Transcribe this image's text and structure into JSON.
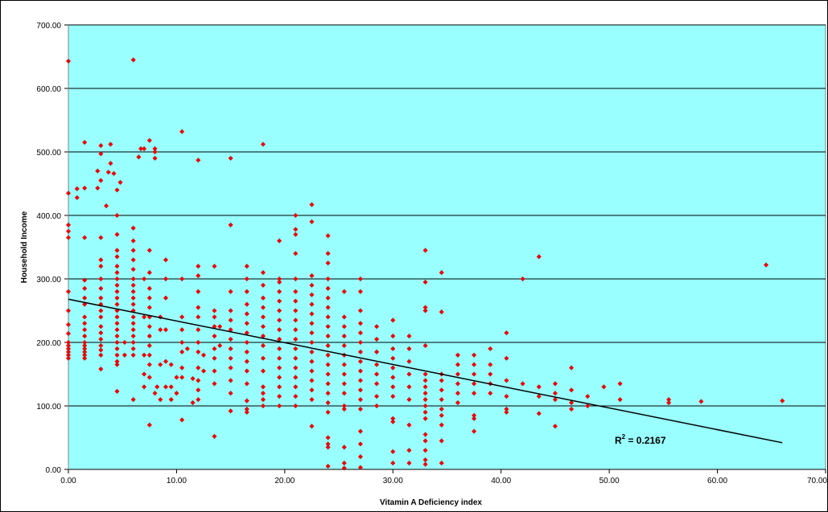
{
  "chart_data": {
    "type": "scatter",
    "title": "",
    "xlabel": "Vitamin A Deficiency index",
    "ylabel": "Household Income",
    "xlim": [
      0,
      70
    ],
    "ylim": [
      0,
      700
    ],
    "x_ticks": [
      "0.00",
      "10.00",
      "20.00",
      "30.00",
      "40.00",
      "50.00",
      "60.00",
      "70.00"
    ],
    "y_ticks": [
      "0.00",
      "100.00",
      "200.00",
      "300.00",
      "400.00",
      "500.00",
      "600.00",
      "700.00"
    ],
    "grid": "horizontal",
    "legend": "none",
    "colors": {
      "plot_background": "#99ffff",
      "marker": "#ff0000",
      "marker_edge": "#cc0000",
      "trendline": "#000000",
      "grid": "#000000"
    },
    "trendline": {
      "x": [
        0,
        66
      ],
      "y": [
        268,
        42
      ],
      "label": "R",
      "label_sup": "2",
      "label_value": " = 0.2167"
    },
    "points": [
      [
        0,
        643
      ],
      [
        0,
        435
      ],
      [
        0,
        385
      ],
      [
        0,
        375
      ],
      [
        0,
        365
      ],
      [
        0,
        280
      ],
      [
        0,
        250
      ],
      [
        0,
        228
      ],
      [
        0,
        214
      ],
      [
        0,
        200
      ],
      [
        0,
        195
      ],
      [
        0,
        190
      ],
      [
        0,
        185
      ],
      [
        0,
        180
      ],
      [
        0,
        175
      ],
      [
        0.8,
        442
      ],
      [
        0.8,
        428
      ],
      [
        1.5,
        515
      ],
      [
        1.5,
        443
      ],
      [
        1.5,
        365
      ],
      [
        1.5,
        298
      ],
      [
        1.5,
        285
      ],
      [
        1.5,
        270
      ],
      [
        1.5,
        260
      ],
      [
        1.5,
        240
      ],
      [
        1.5,
        230
      ],
      [
        1.5,
        220
      ],
      [
        1.5,
        210
      ],
      [
        1.5,
        200
      ],
      [
        1.5,
        195
      ],
      [
        1.5,
        190
      ],
      [
        1.5,
        185
      ],
      [
        1.5,
        180
      ],
      [
        1.5,
        175
      ],
      [
        2.7,
        470
      ],
      [
        2.7,
        443
      ],
      [
        3,
        510
      ],
      [
        3,
        497
      ],
      [
        3,
        455
      ],
      [
        3,
        365
      ],
      [
        3,
        330
      ],
      [
        3,
        320
      ],
      [
        3,
        300
      ],
      [
        3,
        285
      ],
      [
        3,
        270
      ],
      [
        3,
        260
      ],
      [
        3,
        250
      ],
      [
        3,
        240
      ],
      [
        3,
        225
      ],
      [
        3,
        215
      ],
      [
        3,
        205
      ],
      [
        3,
        195
      ],
      [
        3,
        188
      ],
      [
        3,
        180
      ],
      [
        3,
        158
      ],
      [
        3.5,
        415
      ],
      [
        3.7,
        468
      ],
      [
        3.9,
        512
      ],
      [
        3.9,
        482
      ],
      [
        4.2,
        466
      ],
      [
        4.5,
        440
      ],
      [
        4.5,
        400
      ],
      [
        4.5,
        370
      ],
      [
        4.5,
        345
      ],
      [
        4.5,
        335
      ],
      [
        4.5,
        320
      ],
      [
        4.5,
        310
      ],
      [
        4.5,
        300
      ],
      [
        4.5,
        290
      ],
      [
        4.5,
        280
      ],
      [
        4.5,
        270
      ],
      [
        4.5,
        260
      ],
      [
        4.5,
        250
      ],
      [
        4.5,
        240
      ],
      [
        4.5,
        230
      ],
      [
        4.5,
        220
      ],
      [
        4.5,
        210
      ],
      [
        4.5,
        200
      ],
      [
        4.5,
        190
      ],
      [
        4.5,
        180
      ],
      [
        4.5,
        170
      ],
      [
        4.5,
        165
      ],
      [
        4.5,
        123
      ],
      [
        4.8,
        452
      ],
      [
        5.2,
        180
      ],
      [
        5.2,
        200
      ],
      [
        6,
        645
      ],
      [
        6,
        380
      ],
      [
        6,
        360
      ],
      [
        6,
        345
      ],
      [
        6,
        330
      ],
      [
        6,
        315
      ],
      [
        6,
        300
      ],
      [
        6,
        290
      ],
      [
        6,
        280
      ],
      [
        6,
        270
      ],
      [
        6,
        260
      ],
      [
        6,
        250
      ],
      [
        6,
        240
      ],
      [
        6,
        230
      ],
      [
        6,
        220
      ],
      [
        6,
        210
      ],
      [
        6,
        200
      ],
      [
        6,
        190
      ],
      [
        6,
        180
      ],
      [
        6,
        110
      ],
      [
        6.5,
        492
      ],
      [
        6.7,
        505
      ],
      [
        7,
        505
      ],
      [
        7,
        300
      ],
      [
        7,
        240
      ],
      [
        7,
        180
      ],
      [
        7,
        150
      ],
      [
        7,
        130
      ],
      [
        7.5,
        518
      ],
      [
        7.5,
        345
      ],
      [
        7.5,
        310
      ],
      [
        7.5,
        285
      ],
      [
        7.5,
        270
      ],
      [
        7.5,
        255
      ],
      [
        7.5,
        240
      ],
      [
        7.5,
        225
      ],
      [
        7.5,
        210
      ],
      [
        7.5,
        195
      ],
      [
        7.5,
        180
      ],
      [
        7.5,
        165
      ],
      [
        7.5,
        145
      ],
      [
        7.5,
        70
      ],
      [
        8,
        505
      ],
      [
        8,
        490
      ],
      [
        8,
        500
      ],
      [
        8,
        120
      ],
      [
        8.2,
        130
      ],
      [
        8.5,
        220
      ],
      [
        8.5,
        240
      ],
      [
        8.5,
        165
      ],
      [
        8.5,
        110
      ],
      [
        9,
        330
      ],
      [
        9,
        300
      ],
      [
        9,
        270
      ],
      [
        9,
        220
      ],
      [
        9,
        170
      ],
      [
        9,
        130
      ],
      [
        9.5,
        130
      ],
      [
        9.5,
        165
      ],
      [
        9.5,
        110
      ],
      [
        10,
        145
      ],
      [
        10,
        120
      ],
      [
        10.5,
        532
      ],
      [
        10.5,
        300
      ],
      [
        10.5,
        240
      ],
      [
        10.5,
        220
      ],
      [
        10.5,
        200
      ],
      [
        10.5,
        185
      ],
      [
        10.5,
        160
      ],
      [
        10.5,
        145
      ],
      [
        10.5,
        78
      ],
      [
        11,
        190
      ],
      [
        11.5,
        143
      ],
      [
        11.5,
        105
      ],
      [
        12,
        487
      ],
      [
        12,
        320
      ],
      [
        12,
        305
      ],
      [
        12,
        280
      ],
      [
        12,
        255
      ],
      [
        12,
        240
      ],
      [
        12,
        220
      ],
      [
        12,
        200
      ],
      [
        12,
        185
      ],
      [
        12,
        160
      ],
      [
        12,
        140
      ],
      [
        12,
        125
      ],
      [
        12,
        110
      ],
      [
        12.5,
        180
      ],
      [
        12.5,
        155
      ],
      [
        13.5,
        320
      ],
      [
        13.5,
        250
      ],
      [
        13.5,
        240
      ],
      [
        13.5,
        225
      ],
      [
        13.5,
        210
      ],
      [
        13.5,
        190
      ],
      [
        13.5,
        175
      ],
      [
        13.5,
        155
      ],
      [
        13.5,
        135
      ],
      [
        13.5,
        52
      ],
      [
        14,
        225
      ],
      [
        14,
        195
      ],
      [
        15,
        490
      ],
      [
        15,
        385
      ],
      [
        15,
        280
      ],
      [
        15,
        250
      ],
      [
        15,
        235
      ],
      [
        15,
        220
      ],
      [
        15,
        205
      ],
      [
        15,
        190
      ],
      [
        15,
        175
      ],
      [
        15,
        160
      ],
      [
        15,
        140
      ],
      [
        15,
        120
      ],
      [
        15,
        92
      ],
      [
        16.5,
        320
      ],
      [
        16.5,
        300
      ],
      [
        16.5,
        280
      ],
      [
        16.5,
        260
      ],
      [
        16.5,
        245
      ],
      [
        16.5,
        230
      ],
      [
        16.5,
        215
      ],
      [
        16.5,
        200
      ],
      [
        16.5,
        185
      ],
      [
        16.5,
        170
      ],
      [
        16.5,
        155
      ],
      [
        16.5,
        135
      ],
      [
        16.5,
        108
      ],
      [
        16.5,
        95
      ],
      [
        16.5,
        90
      ],
      [
        18,
        512
      ],
      [
        18,
        310
      ],
      [
        18,
        290
      ],
      [
        18,
        270
      ],
      [
        18,
        255
      ],
      [
        18,
        240
      ],
      [
        18,
        225
      ],
      [
        18,
        210
      ],
      [
        18,
        195
      ],
      [
        18,
        175
      ],
      [
        18,
        155
      ],
      [
        18,
        130
      ],
      [
        18,
        120
      ],
      [
        18,
        110
      ],
      [
        18,
        100
      ],
      [
        19.5,
        360
      ],
      [
        19.5,
        300
      ],
      [
        19.5,
        295
      ],
      [
        19.5,
        280
      ],
      [
        19.5,
        265
      ],
      [
        19.5,
        250
      ],
      [
        19.5,
        235
      ],
      [
        19.5,
        220
      ],
      [
        19.5,
        205
      ],
      [
        19.5,
        190
      ],
      [
        19.5,
        175
      ],
      [
        19.5,
        160
      ],
      [
        19.5,
        145
      ],
      [
        19.5,
        130
      ],
      [
        19.5,
        115
      ],
      [
        19.5,
        100
      ],
      [
        21,
        400
      ],
      [
        21,
        378
      ],
      [
        21,
        370
      ],
      [
        21,
        340
      ],
      [
        21,
        300
      ],
      [
        21,
        280
      ],
      [
        21,
        265
      ],
      [
        21,
        250
      ],
      [
        21,
        235
      ],
      [
        21,
        220
      ],
      [
        21,
        205
      ],
      [
        21,
        190
      ],
      [
        21,
        175
      ],
      [
        21,
        160
      ],
      [
        21,
        145
      ],
      [
        21,
        130
      ],
      [
        21,
        115
      ],
      [
        21,
        100
      ],
      [
        22.5,
        417
      ],
      [
        22.5,
        390
      ],
      [
        22.5,
        305
      ],
      [
        22.5,
        290
      ],
      [
        22.5,
        275
      ],
      [
        22.5,
        260
      ],
      [
        22.5,
        245
      ],
      [
        22.5,
        230
      ],
      [
        22.5,
        215
      ],
      [
        22.5,
        200
      ],
      [
        22.5,
        185
      ],
      [
        22.5,
        170
      ],
      [
        22.5,
        155
      ],
      [
        22.5,
        140
      ],
      [
        22.5,
        125
      ],
      [
        22.5,
        110
      ],
      [
        22.5,
        68
      ],
      [
        24,
        368
      ],
      [
        24,
        340
      ],
      [
        24,
        325
      ],
      [
        24,
        300
      ],
      [
        24,
        285
      ],
      [
        24,
        270
      ],
      [
        24,
        255
      ],
      [
        24,
        240
      ],
      [
        24,
        225
      ],
      [
        24,
        210
      ],
      [
        24,
        195
      ],
      [
        24,
        180
      ],
      [
        24,
        165
      ],
      [
        24,
        150
      ],
      [
        24,
        135
      ],
      [
        24,
        120
      ],
      [
        24,
        105
      ],
      [
        24,
        90
      ],
      [
        24,
        50
      ],
      [
        24,
        40
      ],
      [
        24,
        35
      ],
      [
        24,
        5
      ],
      [
        25.5,
        280
      ],
      [
        25.5,
        240
      ],
      [
        25.5,
        225
      ],
      [
        25.5,
        210
      ],
      [
        25.5,
        195
      ],
      [
        25.5,
        180
      ],
      [
        25.5,
        165
      ],
      [
        25.5,
        150
      ],
      [
        25.5,
        135
      ],
      [
        25.5,
        120
      ],
      [
        25.5,
        100
      ],
      [
        25.5,
        95
      ],
      [
        25.5,
        35
      ],
      [
        25.5,
        10
      ],
      [
        25.5,
        2
      ],
      [
        27,
        300
      ],
      [
        27,
        280
      ],
      [
        27,
        250
      ],
      [
        27,
        230
      ],
      [
        27,
        215
      ],
      [
        27,
        200
      ],
      [
        27,
        185
      ],
      [
        27,
        170
      ],
      [
        27,
        155
      ],
      [
        27,
        140
      ],
      [
        27,
        125
      ],
      [
        27,
        110
      ],
      [
        27,
        95
      ],
      [
        27,
        60
      ],
      [
        27,
        40
      ],
      [
        27,
        20
      ],
      [
        27,
        3
      ],
      [
        28.5,
        225
      ],
      [
        28.5,
        205
      ],
      [
        28.5,
        185
      ],
      [
        28.5,
        165
      ],
      [
        28.5,
        150
      ],
      [
        28.5,
        135
      ],
      [
        28.5,
        115
      ],
      [
        28.5,
        100
      ],
      [
        30,
        235
      ],
      [
        30,
        210
      ],
      [
        30,
        190
      ],
      [
        30,
        175
      ],
      [
        30,
        160
      ],
      [
        30,
        145
      ],
      [
        30,
        130
      ],
      [
        30,
        115
      ],
      [
        30,
        80
      ],
      [
        30,
        75
      ],
      [
        30,
        28
      ],
      [
        30,
        10
      ],
      [
        31.5,
        210
      ],
      [
        31.5,
        190
      ],
      [
        31.5,
        170
      ],
      [
        31.5,
        150
      ],
      [
        31.5,
        130
      ],
      [
        31.5,
        110
      ],
      [
        31.5,
        70
      ],
      [
        31.5,
        30
      ],
      [
        31.5,
        10
      ],
      [
        33,
        345
      ],
      [
        33,
        295
      ],
      [
        33,
        255
      ],
      [
        33,
        250
      ],
      [
        33,
        195
      ],
      [
        33,
        150
      ],
      [
        33,
        140
      ],
      [
        33,
        130
      ],
      [
        33,
        120
      ],
      [
        33,
        110
      ],
      [
        33,
        100
      ],
      [
        33,
        90
      ],
      [
        33,
        80
      ],
      [
        33,
        55
      ],
      [
        33,
        45
      ],
      [
        33,
        30
      ],
      [
        33,
        15
      ],
      [
        33,
        8
      ],
      [
        34.5,
        310
      ],
      [
        34.5,
        248
      ],
      [
        34.5,
        150
      ],
      [
        34.5,
        140
      ],
      [
        34.5,
        125
      ],
      [
        34.5,
        110
      ],
      [
        34.5,
        95
      ],
      [
        34.5,
        85
      ],
      [
        34.5,
        70
      ],
      [
        34.5,
        45
      ],
      [
        34.5,
        10
      ],
      [
        36,
        180
      ],
      [
        36,
        165
      ],
      [
        36,
        150
      ],
      [
        36,
        135
      ],
      [
        36,
        120
      ],
      [
        36,
        105
      ],
      [
        37.5,
        180
      ],
      [
        37.5,
        165
      ],
      [
        37.5,
        150
      ],
      [
        37.5,
        135
      ],
      [
        37.5,
        120
      ],
      [
        37.5,
        85
      ],
      [
        37.5,
        80
      ],
      [
        37.5,
        60
      ],
      [
        39,
        190
      ],
      [
        39,
        165
      ],
      [
        39,
        150
      ],
      [
        39,
        135
      ],
      [
        39,
        120
      ],
      [
        40.5,
        215
      ],
      [
        40.5,
        175
      ],
      [
        40.5,
        140
      ],
      [
        40.5,
        115
      ],
      [
        40.5,
        95
      ],
      [
        40.5,
        90
      ],
      [
        42,
        300
      ],
      [
        42,
        135
      ],
      [
        43.5,
        335
      ],
      [
        43.5,
        130
      ],
      [
        43.5,
        115
      ],
      [
        43.5,
        88
      ],
      [
        45,
        135
      ],
      [
        45,
        120
      ],
      [
        45,
        110
      ],
      [
        45,
        68
      ],
      [
        46.5,
        160
      ],
      [
        46.5,
        125
      ],
      [
        46.5,
        105
      ],
      [
        46.5,
        95
      ],
      [
        48,
        115
      ],
      [
        48,
        100
      ],
      [
        49.5,
        130
      ],
      [
        51,
        135
      ],
      [
        51,
        110
      ],
      [
        55.5,
        110
      ],
      [
        55.5,
        105
      ],
      [
        58.5,
        107
      ],
      [
        64.5,
        322
      ],
      [
        66,
        108
      ]
    ]
  }
}
